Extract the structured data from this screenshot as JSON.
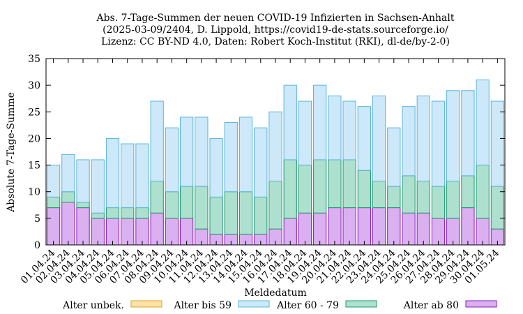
{
  "chart_data": {
    "type": "bar",
    "stacked": true,
    "title_lines": [
      "Abs. 7-Tage-Summen der neuen COVID-19 Infizierten in Sachsen-Anhalt",
      "(2025-03-09/2404, D. Lippold, https://covid19-de-stats.sourceforge.io/",
      "Lizenz: CC BY-ND 4.0, Daten: Robert Koch-Institut (RKI), dl-de/by-2-0)"
    ],
    "xlabel": "Meldedatum",
    "ylabel": "Absolute 7-Tage-Summe",
    "ylim": [
      0,
      35
    ],
    "yticks": [
      0,
      5,
      10,
      15,
      20,
      25,
      30,
      35
    ],
    "categories": [
      "01.04.24",
      "02.04.24",
      "03.04.24",
      "04.04.24",
      "05.04.24",
      "06.04.24",
      "07.04.24",
      "08.04.24",
      "09.04.24",
      "10.04.24",
      "11.04.24",
      "12.04.24",
      "13.04.24",
      "14.04.24",
      "15.04.24",
      "16.04.24",
      "17.04.24",
      "18.04.24",
      "19.04.24",
      "20.04.24",
      "21.04.24",
      "22.04.24",
      "23.04.24",
      "24.04.24",
      "25.04.24",
      "26.04.24",
      "27.04.24",
      "28.04.24",
      "29.04.24",
      "30.04.24",
      "01.05.24"
    ],
    "grid": false,
    "legend_position": "bottom",
    "series": [
      {
        "name": "Alter ab 80",
        "color": "#dbb0f0",
        "edge": "#8a1ab8",
        "values": [
          7,
          8,
          7,
          5,
          5,
          5,
          5,
          6,
          5,
          5,
          3,
          2,
          2,
          2,
          2,
          3,
          5,
          6,
          6,
          7,
          7,
          7,
          7,
          7,
          6,
          6,
          5,
          5,
          7,
          5,
          3
        ]
      },
      {
        "name": "Alter 60 - 79",
        "color": "#aee0cf",
        "edge": "#1a9a6a",
        "values": [
          2,
          2,
          1,
          1,
          2,
          2,
          2,
          6,
          5,
          6,
          8,
          7,
          8,
          8,
          7,
          9,
          11,
          9,
          10,
          9,
          9,
          7,
          5,
          4,
          7,
          6,
          6,
          7,
          6,
          10,
          8
        ]
      },
      {
        "name": "Alter bis 59",
        "color": "#cde8f8",
        "edge": "#5ab4dc",
        "values": [
          6,
          7,
          8,
          10,
          13,
          12,
          12,
          15,
          12,
          13,
          13,
          11,
          13,
          14,
          13,
          13,
          14,
          12,
          14,
          12,
          11,
          12,
          16,
          11,
          13,
          16,
          16,
          17,
          16,
          16,
          16
        ]
      },
      {
        "name": "Alter unbek.",
        "color": "#fbe2a8",
        "edge": "#e0a020",
        "values": [
          0,
          0,
          0,
          0,
          0,
          0,
          0,
          0,
          0,
          0,
          0,
          0,
          0,
          0,
          0,
          0,
          0,
          0,
          0,
          0,
          0,
          0,
          0,
          0,
          0,
          0,
          0,
          0,
          0,
          0,
          0
        ]
      }
    ],
    "legend_order": [
      "Alter unbek.",
      "Alter bis 59",
      "Alter 60 - 79",
      "Alter ab 80"
    ]
  }
}
